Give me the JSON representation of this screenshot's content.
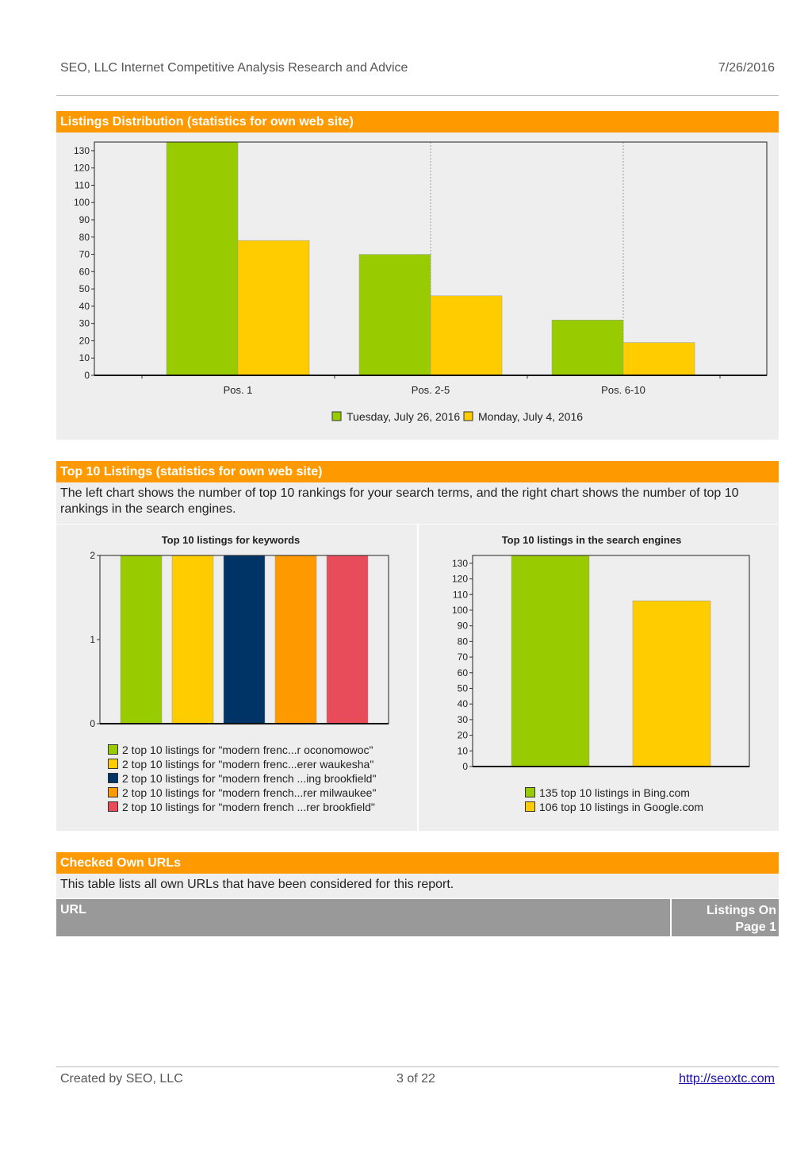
{
  "header": {
    "title": "SEO, LLC Internet Competitive Analysis Research and Advice",
    "date": "7/26/2016"
  },
  "section1": {
    "title": "Listings Distribution (statistics for own web site)"
  },
  "section2": {
    "title": "Top 10 Listings (statistics for own web site)",
    "description": "The left chart shows the number of top 10 rankings for your search terms, and the right chart shows the number of top 10 rankings in the search engines."
  },
  "section3": {
    "title": "Checked Own URLs",
    "description": "This table lists all own URLs that have been considered for this report.",
    "columns": [
      "URL",
      "Listings On Page 1"
    ]
  },
  "footer": {
    "left": "Created by SEO, LLC",
    "page": "3 of 22",
    "link": "http://seoxtc.com"
  },
  "colors": {
    "green": "#99cc00",
    "yellow": "#ffcc00",
    "navy": "#003366",
    "orange": "#ff9900",
    "red": "#e84c5b",
    "section_bar": "#ff9900"
  },
  "chart_data": [
    {
      "type": "bar",
      "title": "",
      "categories": [
        "Pos. 1",
        "Pos. 2-5",
        "Pos. 6-10"
      ],
      "series": [
        {
          "name": "Tuesday, July 26, 2016",
          "values": [
            135,
            70,
            32
          ],
          "color": "#99cc00"
        },
        {
          "name": "Monday, July 4, 2016",
          "values": [
            78,
            46,
            19
          ],
          "color": "#ffcc00"
        }
      ],
      "yticks": [
        0,
        10,
        20,
        30,
        40,
        50,
        60,
        70,
        80,
        90,
        100,
        110,
        120,
        130
      ],
      "ylim": [
        0,
        135
      ],
      "legend": "bottom"
    },
    {
      "type": "bar",
      "title": "Top 10 listings for keywords",
      "series": [
        {
          "name": "2 top 10 listings for \"modern frenc...r oconomowoc\"",
          "value": 2,
          "color": "#99cc00"
        },
        {
          "name": "2 top 10 listings for \"modern frenc...erer waukesha\"",
          "value": 2,
          "color": "#ffcc00"
        },
        {
          "name": "2 top 10 listings for \"modern french ...ing brookfield\"",
          "value": 2,
          "color": "#003366"
        },
        {
          "name": "2 top 10 listings for \"modern french...rer milwaukee\"",
          "value": 2,
          "color": "#ff9900"
        },
        {
          "name": "2 top 10 listings for \"modern french ...rer brookfield\"",
          "value": 2,
          "color": "#e84c5b"
        }
      ],
      "yticks": [
        0,
        1,
        2
      ],
      "ylim": [
        0,
        2
      ],
      "legend": "bottom"
    },
    {
      "type": "bar",
      "title": "Top 10 listings in the search engines",
      "series": [
        {
          "name": "135 top 10 listings in Bing.com",
          "value": 135,
          "color": "#99cc00"
        },
        {
          "name": "106 top 10 listings in Google.com",
          "value": 106,
          "color": "#ffcc00"
        }
      ],
      "yticks": [
        0,
        10,
        20,
        30,
        40,
        50,
        60,
        70,
        80,
        90,
        100,
        110,
        120,
        130
      ],
      "ylim": [
        0,
        135
      ],
      "legend": "bottom"
    }
  ]
}
